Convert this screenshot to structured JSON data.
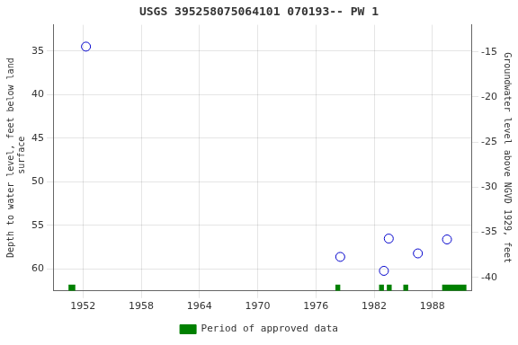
{
  "chart_data": {
    "type": "scatter",
    "title": "USGS 395258075064101 070193-- PW 1",
    "y_label": "Depth to water level, feet below land\n surface",
    "y2_label": "Groundwater level above NGVD 1929, feet",
    "x": [
      1952.3,
      1978.5,
      1983.5,
      1986.5,
      1989.5,
      1983.0
    ],
    "series": [
      {
        "values": [
          34.5,
          58.6,
          56.5,
          58.2,
          56.6,
          60.2
        ],
        "color": "#0000cc",
        "marker": "circle"
      }
    ],
    "periods": {
      "name": "Period of approved data",
      "color": "#008000",
      "ranges": [
        [
          1950.5,
          1951.2
        ],
        [
          1978.0,
          1978.5
        ],
        [
          1982.5,
          1983.0
        ],
        [
          1983.3,
          1983.8
        ],
        [
          1985.0,
          1985.5
        ],
        [
          1989.0,
          1991.5
        ]
      ]
    },
    "xlim": [
      1949,
      1992
    ],
    "xticks": [
      1952,
      1958,
      1964,
      1970,
      1976,
      1982,
      1988
    ],
    "ylim": [
      62.5,
      32.0
    ],
    "yticks": [
      35,
      40,
      45,
      50,
      55,
      60
    ],
    "y2lim": [
      -41.5,
      -12.0
    ],
    "y2ticks": [
      -15,
      -20,
      -25,
      -30,
      -35,
      -40
    ],
    "grid": true,
    "legend": "bottom"
  }
}
